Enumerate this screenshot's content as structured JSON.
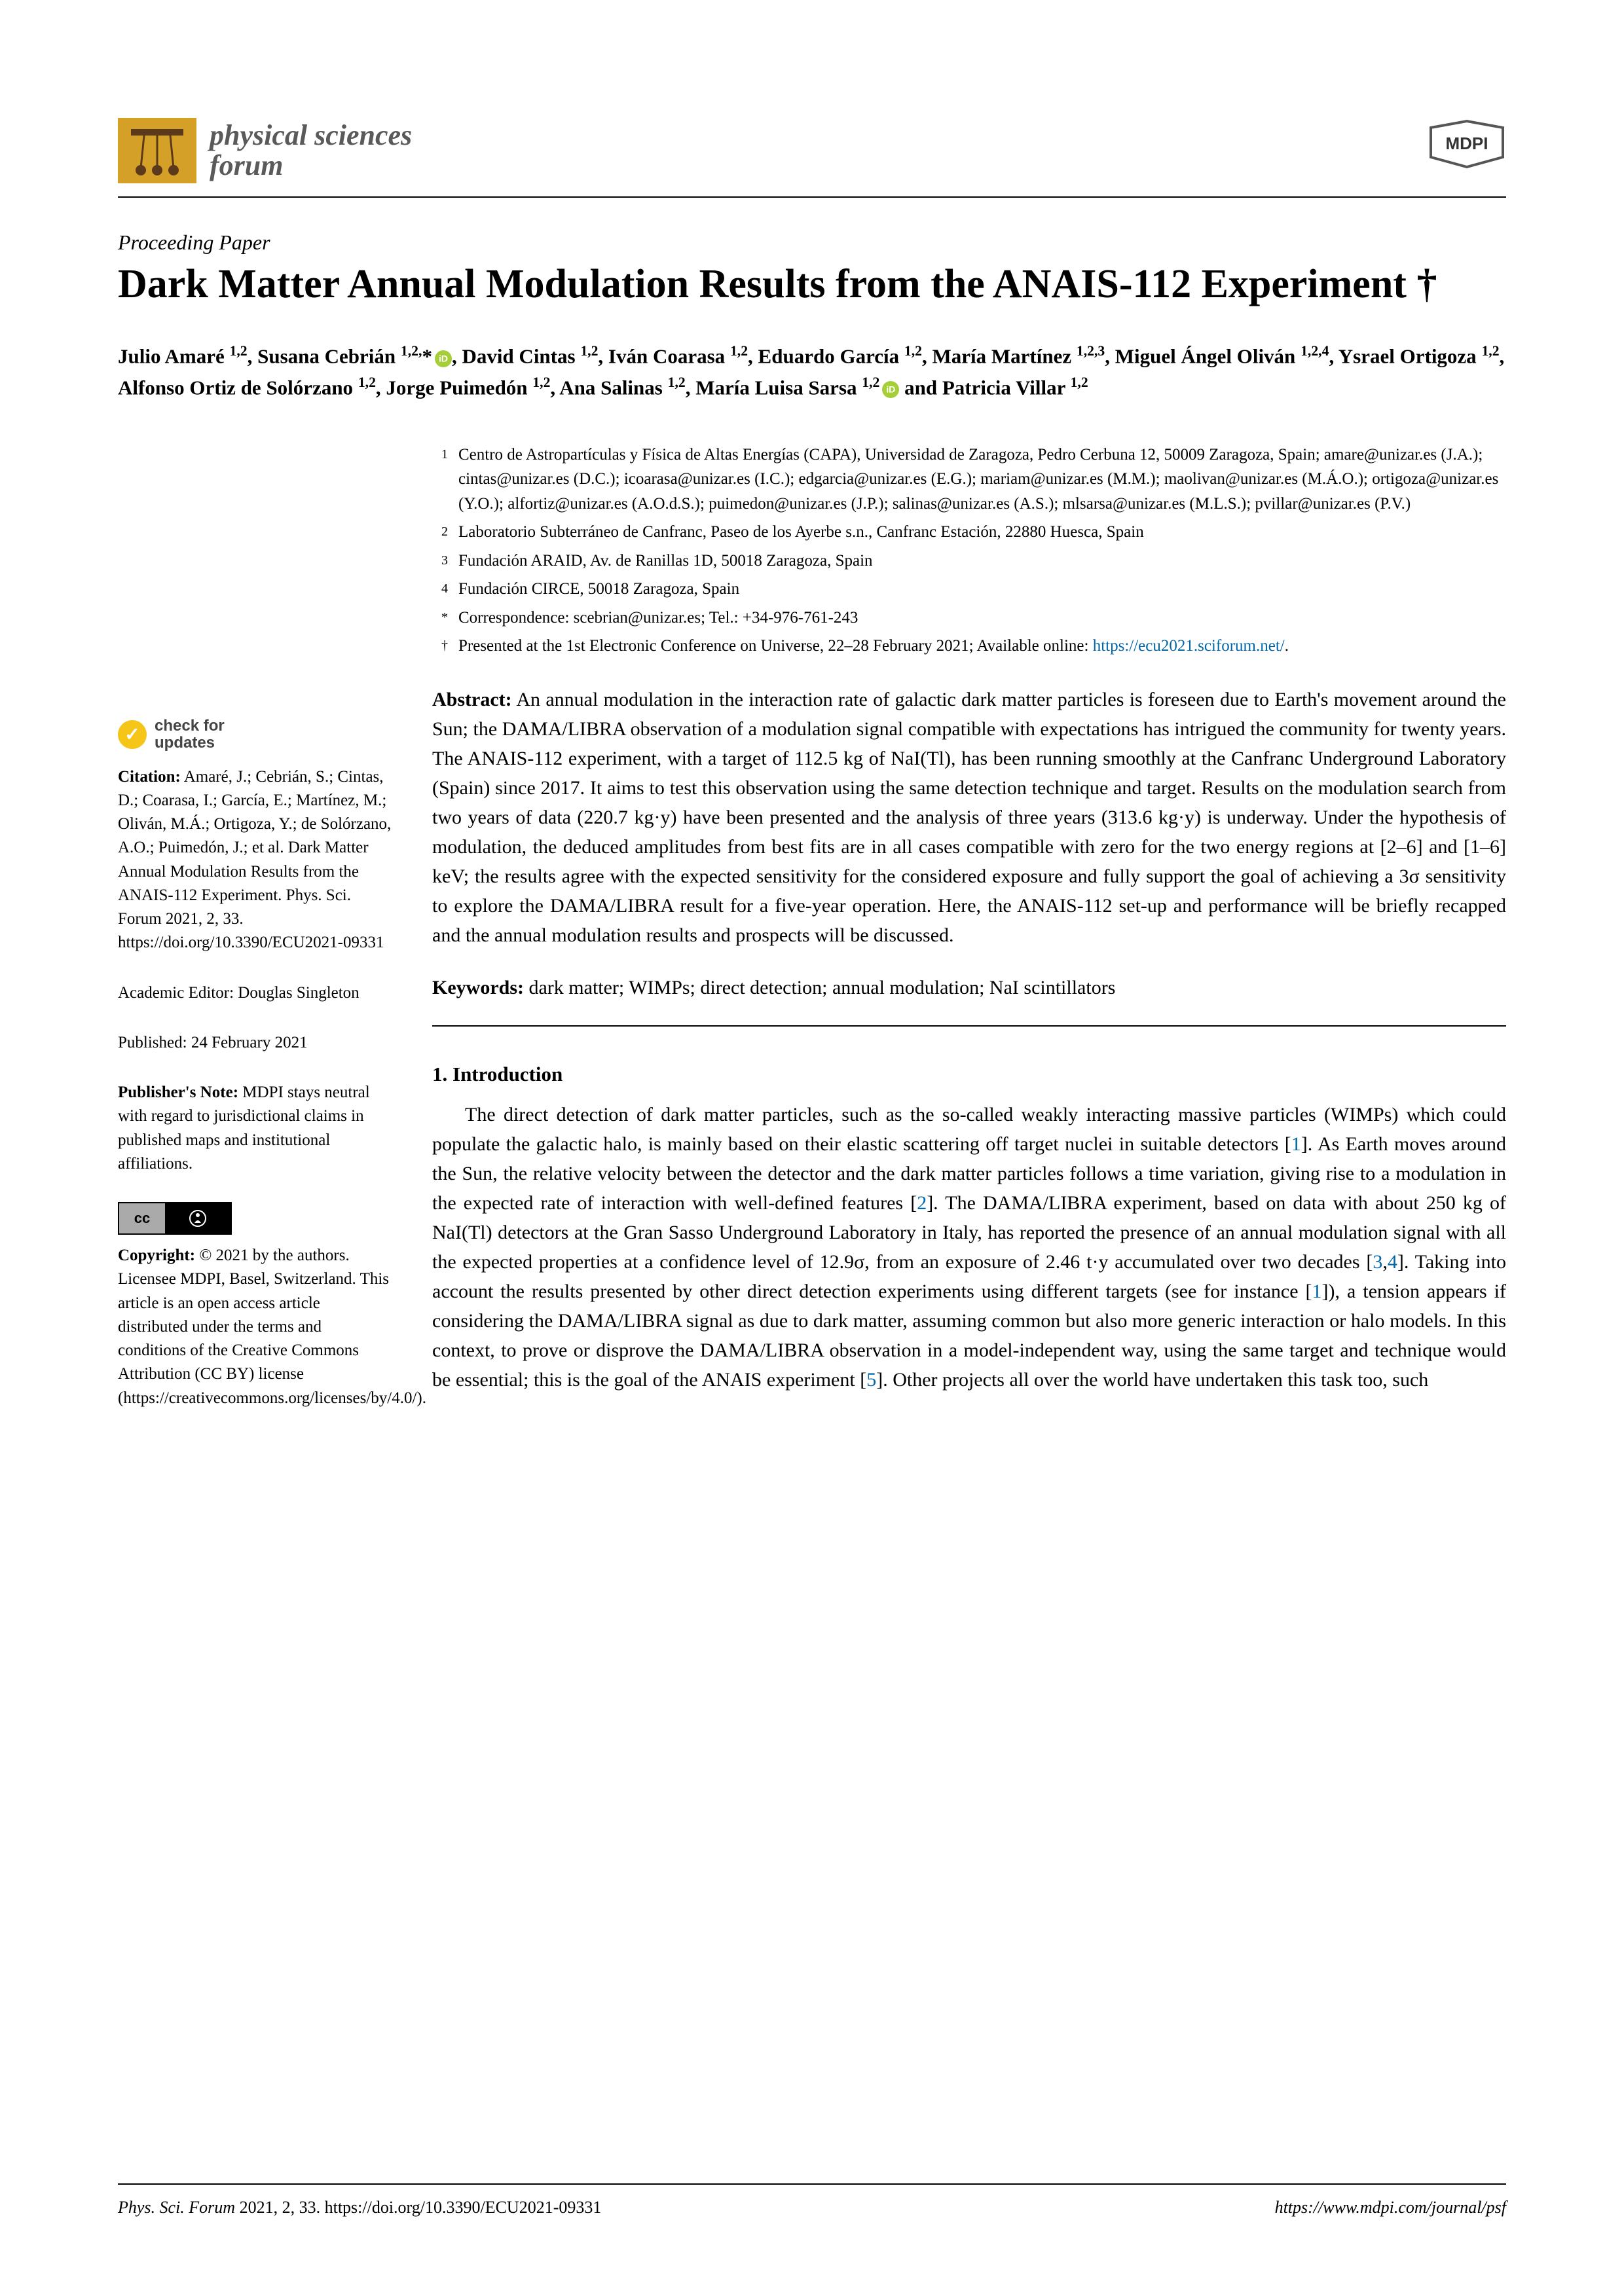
{
  "journal": {
    "name_line1": "physical sciences",
    "name_line2": "forum",
    "publisher": "MDPI"
  },
  "article_type": "Proceeding Paper",
  "title": "Dark Matter Annual Modulation Results from the ANAIS-112 Experiment †",
  "authors_html": "Julio Amaré <sup>1,2</sup>, Susana Cebrián <sup>1,2,</sup>*<span class='orcid'></span>, David Cintas <sup>1,2</sup>, Iván Coarasa <sup>1,2</sup>, Eduardo García <sup>1,2</sup>, María Martínez <sup>1,2,3</sup>, Miguel Ángel Oliván <sup>1,2,4</sup>, Ysrael Ortigoza <sup>1,2</sup>, Alfonso Ortiz de Solórzano <sup>1,2</sup>, Jorge Puimedón <sup>1,2</sup>, Ana Salinas <sup>1,2</sup>, María Luisa Sarsa <sup>1,2</sup><span class='orcid'></span> and Patricia Villar <sup>1,2</sup>",
  "affiliations": [
    {
      "num": "1",
      "text": "Centro de Astropartículas y Física de Altas Energías (CAPA), Universidad de Zaragoza, Pedro Cerbuna 12, 50009 Zaragoza, Spain; amare@unizar.es (J.A.); cintas@unizar.es (D.C.); icoarasa@unizar.es (I.C.); edgarcia@unizar.es (E.G.); mariam@unizar.es (M.M.); maolivan@unizar.es (M.Á.O.); ortigoza@unizar.es (Y.O.); alfortiz@unizar.es (A.O.d.S.); puimedon@unizar.es (J.P.); salinas@unizar.es (A.S.); mlsarsa@unizar.es (M.L.S.); pvillar@unizar.es (P.V.)"
    },
    {
      "num": "2",
      "text": "Laboratorio Subterráneo de Canfranc, Paseo de los Ayerbe s.n., Canfranc Estación, 22880 Huesca, Spain"
    },
    {
      "num": "3",
      "text": "Fundación ARAID, Av. de Ranillas 1D, 50018 Zaragoza, Spain"
    },
    {
      "num": "4",
      "text": "Fundación CIRCE, 50018 Zaragoza, Spain"
    },
    {
      "num": "*",
      "text": "Correspondence: scebrian@unizar.es; Tel.: +34-976-761-243"
    },
    {
      "num": "†",
      "text": "Presented at the 1st Electronic Conference on Universe, 22–28 February 2021; Available online: <a class='link' href='#'>https://ecu2021.sciforum.net/</a>."
    }
  ],
  "abstract_label": "Abstract:",
  "abstract": "An annual modulation in the interaction rate of galactic dark matter particles is foreseen due to Earth's movement around the Sun; the DAMA/LIBRA observation of a modulation signal compatible with expectations has intrigued the community for twenty years. The ANAIS-112 experiment, with a target of 112.5 kg of NaI(Tl), has been running smoothly at the Canfranc Underground Laboratory (Spain) since 2017. It aims to test this observation using the same detection technique and target. Results on the modulation search from two years of data (220.7 kg·y) have been presented and the analysis of three years (313.6 kg·y) is underway. Under the hypothesis of modulation, the deduced amplitudes from best fits are in all cases compatible with zero for the two energy regions at [2–6] and [1–6] keV; the results agree with the expected sensitivity for the considered exposure and fully support the goal of achieving a 3σ sensitivity to explore the DAMA/LIBRA result for a five-year operation. Here, the ANAIS-112 set-up and performance will be briefly recapped and the annual modulation results and prospects will be discussed.",
  "keywords_label": "Keywords:",
  "keywords": "dark matter; WIMPs; direct detection; annual modulation; NaI scintillators",
  "sidebar": {
    "check_updates": "check for updates",
    "citation_label": "Citation:",
    "citation": "Amaré, J.; Cebrián, S.; Cintas, D.; Coarasa, I.; García, E.; Martínez, M.; Oliván, M.Á.; Ortigoza, Y.; de Solórzano, A.O.; Puimedón, J.; et al. Dark Matter Annual Modulation Results from the ANAIS-112 Experiment. Phys. Sci. Forum 2021, 2, 33. https://doi.org/10.3390/ECU2021-09331",
    "editor": "Academic Editor: Douglas Singleton",
    "published": "Published: 24 February 2021",
    "publishers_note_label": "Publisher's Note:",
    "publishers_note": "MDPI stays neutral with regard to jurisdictional claims in published maps and institutional affiliations.",
    "copyright_label": "Copyright:",
    "copyright": "© 2021 by the authors. Licensee MDPI, Basel, Switzerland. This article is an open access article distributed under the terms and conditions of the Creative Commons Attribution (CC BY) license (https://creativecommons.org/licenses/by/4.0/)."
  },
  "section1": {
    "heading": "1. Introduction",
    "body_html": "The direct detection of dark matter particles, such as the so-called weakly interacting massive particles (WIMPs) which could populate the galactic halo, is mainly based on their elastic scattering off target nuclei in suitable detectors [<span class='ref-link'>1</span>]. As Earth moves around the Sun, the relative velocity between the detector and the dark matter particles follows a time variation, giving rise to a modulation in the expected rate of interaction with well-defined features [<span class='ref-link'>2</span>]. The DAMA/LIBRA experiment, based on data with about 250 kg of NaI(Tl) detectors at the Gran Sasso Underground Laboratory in Italy, has reported the presence of an annual modulation signal with all the expected properties at a confidence level of 12.9σ, from an exposure of 2.46 t·y accumulated over two decades [<span class='ref-link'>3</span>,<span class='ref-link'>4</span>]. Taking into account the results presented by other direct detection experiments using different targets (see for instance [<span class='ref-link'>1</span>]), a tension appears if considering the DAMA/LIBRA signal as due to dark matter, assuming common but also more generic interaction or halo models. In this context, to prove or disprove the DAMA/LIBRA observation in a model-independent way, using the same target and technique would be essential; this is the goal of the ANAIS experiment [<span class='ref-link'>5</span>]. Other projects all over the world have undertaken this task too, such"
  },
  "footer": {
    "left_italic": "Phys. Sci. Forum",
    "left_roman": " 2021, 2, 33. https://doi.org/10.3390/ECU2021-09331",
    "right": "https://www.mdpi.com/journal/psf"
  },
  "colors": {
    "logo_bg": "#d4a028",
    "orcid": "#a6ce39",
    "link": "#0066aa",
    "text": "#000000",
    "bg": "#ffffff"
  }
}
